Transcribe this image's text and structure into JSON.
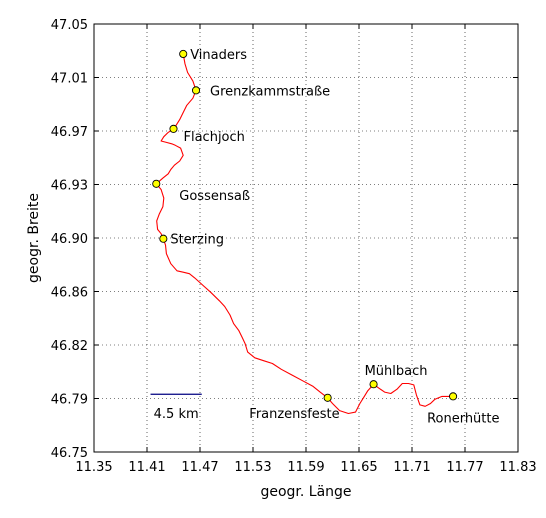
{
  "chart_data": {
    "type": "line",
    "xlabel": "geogr. Länge",
    "ylabel": "geogr. Breite",
    "xlim": [
      11.35,
      11.83
    ],
    "ylim": [
      46.75,
      47.05
    ],
    "x_ticks": [
      "11.35",
      "11.41",
      "11.47",
      "11.53",
      "11.59",
      "11.65",
      "11.71",
      "11.77",
      "11.83"
    ],
    "y_ticks": [
      "46.75",
      "46.79",
      "46.82",
      "46.86",
      "46.90",
      "46.93",
      "46.97",
      "47.01",
      "47.05"
    ],
    "grid": true,
    "route_color": "#ff0000",
    "marker_color": "#ffff00",
    "scale_bar": {
      "label": "4.5 km",
      "color": "#000080",
      "x_from": 11.414,
      "x_to": 11.472,
      "y": 46.7905
    },
    "points": [
      {
        "name": "Vinaders",
        "x": 11.451,
        "y": 47.029,
        "label_side": "right"
      },
      {
        "name": "Grenzkammstraße",
        "x": 11.4655,
        "y": 47.0035,
        "label_side": "right"
      },
      {
        "name": "Flachjoch",
        "x": 11.44,
        "y": 46.9765,
        "label_side": "right"
      },
      {
        "name": "Gossensaß",
        "x": 11.4205,
        "y": 46.938,
        "label_side": "right-below"
      },
      {
        "name": "Sterzing",
        "x": 11.4285,
        "y": 46.8995,
        "label_side": "right"
      },
      {
        "name": "Franzensfeste",
        "x": 11.6145,
        "y": 46.788,
        "label_side": "left-below"
      },
      {
        "name": "Mühlbach",
        "x": 11.6665,
        "y": 46.7975,
        "label_side": "above"
      },
      {
        "name": "Ronerhütte",
        "x": 11.7565,
        "y": 46.789,
        "label_side": "below"
      }
    ],
    "route": [
      [
        11.451,
        47.029
      ],
      [
        11.453,
        47.022
      ],
      [
        11.456,
        47.016
      ],
      [
        11.462,
        47.01
      ],
      [
        11.4655,
        47.0035
      ],
      [
        11.462,
        46.998
      ],
      [
        11.455,
        46.993
      ],
      [
        11.451,
        46.988
      ],
      [
        11.447,
        46.983
      ],
      [
        11.443,
        46.979
      ],
      [
        11.44,
        46.9765
      ],
      [
        11.434,
        46.974
      ],
      [
        11.429,
        46.971
      ],
      [
        11.426,
        46.968
      ],
      [
        11.432,
        46.967
      ],
      [
        11.438,
        46.966
      ],
      [
        11.442,
        46.965
      ],
      [
        11.448,
        46.963
      ],
      [
        11.451,
        46.958
      ],
      [
        11.447,
        46.954
      ],
      [
        11.441,
        46.951
      ],
      [
        11.437,
        46.948
      ],
      [
        11.434,
        46.945
      ],
      [
        11.428,
        46.942
      ],
      [
        11.4205,
        46.938
      ],
      [
        11.426,
        46.934
      ],
      [
        11.429,
        46.928
      ],
      [
        11.428,
        46.922
      ],
      [
        11.424,
        46.917
      ],
      [
        11.421,
        46.912
      ],
      [
        11.422,
        46.906
      ],
      [
        11.426,
        46.903
      ],
      [
        11.4285,
        46.8995
      ],
      [
        11.431,
        46.895
      ],
      [
        11.432,
        46.889
      ],
      [
        11.437,
        46.882
      ],
      [
        11.444,
        46.877
      ],
      [
        11.451,
        46.876
      ],
      [
        11.458,
        46.875
      ],
      [
        11.464,
        46.872
      ],
      [
        11.473,
        46.867
      ],
      [
        11.482,
        46.862
      ],
      [
        11.492,
        46.856
      ],
      [
        11.498,
        46.852
      ],
      [
        11.504,
        46.846
      ],
      [
        11.508,
        46.84
      ],
      [
        11.514,
        46.835
      ],
      [
        11.518,
        46.83
      ],
      [
        11.521,
        46.826
      ],
      [
        11.524,
        46.82
      ],
      [
        11.532,
        46.816
      ],
      [
        11.542,
        46.814
      ],
      [
        11.552,
        46.812
      ],
      [
        11.562,
        46.808
      ],
      [
        11.574,
        46.804
      ],
      [
        11.586,
        46.8
      ],
      [
        11.598,
        46.796
      ],
      [
        11.606,
        46.792
      ],
      [
        11.6145,
        46.788
      ],
      [
        11.62,
        46.784
      ],
      [
        11.628,
        46.779
      ],
      [
        11.638,
        46.777
      ],
      [
        11.646,
        46.778
      ],
      [
        11.651,
        46.784
      ],
      [
        11.656,
        46.789
      ],
      [
        11.66,
        46.793
      ],
      [
        11.6665,
        46.7975
      ],
      [
        11.672,
        46.795
      ],
      [
        11.679,
        46.792
      ],
      [
        11.686,
        46.791
      ],
      [
        11.693,
        46.794
      ],
      [
        11.699,
        46.798
      ],
      [
        11.706,
        46.798
      ],
      [
        11.712,
        46.797
      ],
      [
        11.715,
        46.79
      ],
      [
        11.719,
        46.783
      ],
      [
        11.725,
        46.782
      ],
      [
        11.731,
        46.784
      ],
      [
        11.736,
        46.787
      ],
      [
        11.744,
        46.789
      ],
      [
        11.75,
        46.789
      ],
      [
        11.7565,
        46.789
      ]
    ]
  }
}
